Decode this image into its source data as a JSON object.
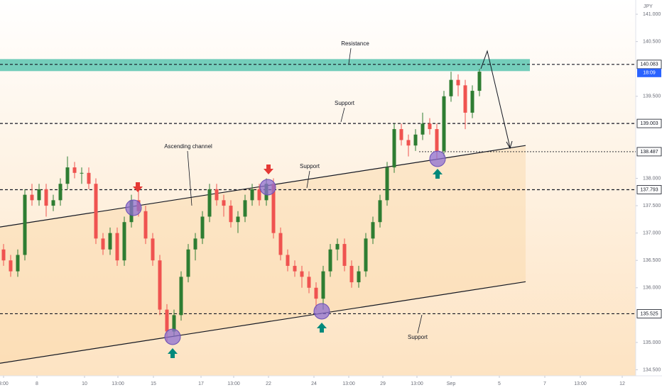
{
  "chart_data": {
    "type": "candlestick",
    "symbol": "JPY",
    "open": [
      136.7,
      136.5,
      136.3,
      136.6,
      137.7,
      137.6,
      137.8,
      137.5,
      137.6,
      137.9,
      138.2,
      138.1,
      138.1,
      137.9,
      136.9,
      136.7,
      137.0,
      136.5,
      137.2,
      137.6,
      137.4,
      136.9,
      136.5,
      135.6,
      135.2,
      135.5,
      136.2,
      136.7,
      136.9,
      137.3,
      137.8,
      137.6,
      137.5,
      137.2,
      137.3,
      137.6,
      137.8,
      137.6,
      137.9,
      137.0,
      136.6,
      136.4,
      136.3,
      136.2,
      136.0,
      135.8,
      136.3,
      136.7,
      136.8,
      136.4,
      136.1,
      136.3,
      136.9,
      137.2,
      137.6,
      138.2,
      138.9,
      138.7,
      138.6,
      138.8,
      139.0,
      138.9,
      138.5,
      139.5,
      139.8,
      139.7,
      139.2,
      139.6
    ],
    "high": [
      136.8,
      136.6,
      136.7,
      137.8,
      137.9,
      137.9,
      137.9,
      137.7,
      138.0,
      138.4,
      138.3,
      138.2,
      138.2,
      138.0,
      137.0,
      137.1,
      137.1,
      137.3,
      137.7,
      137.8,
      137.5,
      137.0,
      136.6,
      135.7,
      135.6,
      136.3,
      136.8,
      137.0,
      137.4,
      137.9,
      137.9,
      137.7,
      137.6,
      137.4,
      137.7,
      137.9,
      137.9,
      138.0,
      138.0,
      137.1,
      136.7,
      136.5,
      136.4,
      136.3,
      136.1,
      136.4,
      136.8,
      136.9,
      136.9,
      136.5,
      136.4,
      137.0,
      137.3,
      137.7,
      138.3,
      139.0,
      139.0,
      138.8,
      138.9,
      139.2,
      139.1,
      139.0,
      139.6,
      139.95,
      139.9,
      139.8,
      139.7,
      140.0
    ],
    "low": [
      136.4,
      136.2,
      136.2,
      136.5,
      137.5,
      137.5,
      137.3,
      137.4,
      137.5,
      137.8,
      138.0,
      137.9,
      137.8,
      136.8,
      136.6,
      136.6,
      136.4,
      136.4,
      137.1,
      137.3,
      136.8,
      136.4,
      135.5,
      135.0,
      135.1,
      135.4,
      136.1,
      136.5,
      136.8,
      137.2,
      137.5,
      137.3,
      137.1,
      137.0,
      137.2,
      137.5,
      137.5,
      137.5,
      136.9,
      136.5,
      136.3,
      136.2,
      136.0,
      135.9,
      135.6,
      135.6,
      136.2,
      136.5,
      136.3,
      136.0,
      136.0,
      136.2,
      136.8,
      137.1,
      137.5,
      138.1,
      138.6,
      138.4,
      138.5,
      138.7,
      138.8,
      138.35,
      138.4,
      139.4,
      139.5,
      138.9,
      139.1,
      139.5
    ],
    "close": [
      136.5,
      136.3,
      136.6,
      137.7,
      137.6,
      137.8,
      137.5,
      137.6,
      137.9,
      138.2,
      138.1,
      138.1,
      137.9,
      136.9,
      136.7,
      137.0,
      136.5,
      137.2,
      137.6,
      137.4,
      136.9,
      136.5,
      135.6,
      135.2,
      135.5,
      136.2,
      136.7,
      136.9,
      137.3,
      137.8,
      137.6,
      137.5,
      137.2,
      137.3,
      137.6,
      137.8,
      137.6,
      137.9,
      137.0,
      136.6,
      136.4,
      136.3,
      136.2,
      136.0,
      135.8,
      136.3,
      136.7,
      136.8,
      136.4,
      136.1,
      136.3,
      136.9,
      137.2,
      137.6,
      138.2,
      138.9,
      138.7,
      138.6,
      138.8,
      139.0,
      138.9,
      138.5,
      139.5,
      139.8,
      139.7,
      139.2,
      139.6,
      139.95
    ],
    "up_color": "#2e7d32",
    "down_color": "#ef5350",
    "xlim": [
      -0.5,
      89
    ],
    "ylim": [
      134.39,
      141.26
    ],
    "xticks": [
      {
        "value": 0,
        "label": "3:00"
      },
      {
        "value": 4.7,
        "label": "8"
      },
      {
        "value": 11.4,
        "label": "10"
      },
      {
        "value": 16.1,
        "label": "13:00"
      },
      {
        "value": 21.1,
        "label": "15"
      },
      {
        "value": 27.8,
        "label": "17"
      },
      {
        "value": 32.4,
        "label": "13:00"
      },
      {
        "value": 37.3,
        "label": "22"
      },
      {
        "value": 43.7,
        "label": "24"
      },
      {
        "value": 48.6,
        "label": "13:00"
      },
      {
        "value": 53.4,
        "label": "29"
      },
      {
        "value": 58.2,
        "label": "13:00"
      },
      {
        "value": 63,
        "label": "Sep"
      },
      {
        "value": 69.8,
        "label": "5"
      },
      {
        "value": 76.2,
        "label": "7"
      },
      {
        "value": 81.2,
        "label": "13:00"
      },
      {
        "value": 87.1,
        "label": "12"
      }
    ],
    "yticks": [
      {
        "value": 141,
        "label": "141.000"
      },
      {
        "value": 140.5,
        "label": "140.500"
      },
      {
        "value": 139.5,
        "label": "139.500"
      },
      {
        "value": 138,
        "label": "138.000"
      },
      {
        "value": 137.5,
        "label": "137.500"
      },
      {
        "value": 137,
        "label": "137.000"
      },
      {
        "value": 136.5,
        "label": "136.500"
      },
      {
        "value": 136,
        "label": "136.000"
      },
      {
        "value": 135,
        "label": "135.000"
      },
      {
        "value": 134.5,
        "label": "134.500"
      }
    ],
    "price_levels": [
      {
        "value": 140.083,
        "label": "140.083"
      },
      {
        "value": 139.003,
        "label": "139.003"
      },
      {
        "value": 138.487,
        "label": "138.487"
      },
      {
        "value": 137.793,
        "label": "137.793"
      },
      {
        "value": 135.525,
        "label": "135.525"
      }
    ],
    "countdown": "18:09",
    "resistance_zone": [
      139.96,
      140.18
    ],
    "channel_upper": {
      "x": [
        -0.5,
        73.5
      ],
      "y": [
        137.11,
        138.6
      ]
    },
    "channel_lower": {
      "x": [
        -0.5,
        73.5
      ],
      "y": [
        134.62,
        136.11
      ]
    },
    "annotations": [
      "Resistance",
      "Support",
      "Ascending channel",
      "Support",
      "Support"
    ]
  }
}
